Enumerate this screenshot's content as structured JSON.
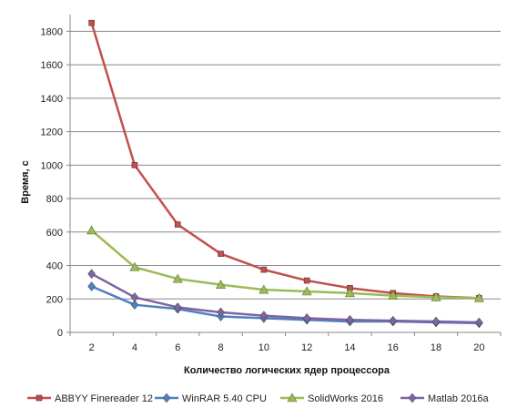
{
  "chart_data": {
    "type": "line",
    "x": [
      2,
      4,
      6,
      8,
      10,
      12,
      14,
      16,
      18,
      20
    ],
    "series": [
      {
        "name": "ABBYY Finereader 12",
        "color": "#c0504d",
        "marker": "square",
        "values": [
          1850,
          1000,
          645,
          470,
          375,
          310,
          265,
          235,
          215,
          205
        ]
      },
      {
        "name": "WinRAR 5.40 CPU",
        "color": "#4f81bd",
        "marker": "diamond",
        "values": [
          275,
          165,
          140,
          95,
          85,
          75,
          65,
          65,
          60,
          55
        ]
      },
      {
        "name": "SolidWorks 2016",
        "color": "#9bbb59",
        "marker": "triangle",
        "values": [
          610,
          390,
          320,
          285,
          255,
          245,
          235,
          220,
          210,
          205
        ]
      },
      {
        "name": "Matlab 2016a",
        "color": "#8064a2",
        "marker": "diamond",
        "values": [
          350,
          210,
          150,
          120,
          100,
          85,
          75,
          70,
          65,
          60
        ]
      }
    ],
    "xlabel": "Количество  логических ядер процессора",
    "ylabel": "Время, с",
    "ylim": [
      0,
      1800
    ],
    "yticks": [
      0,
      200,
      400,
      600,
      800,
      1000,
      1200,
      1400,
      1600,
      1800
    ],
    "grid": true,
    "legend": "bottom"
  }
}
